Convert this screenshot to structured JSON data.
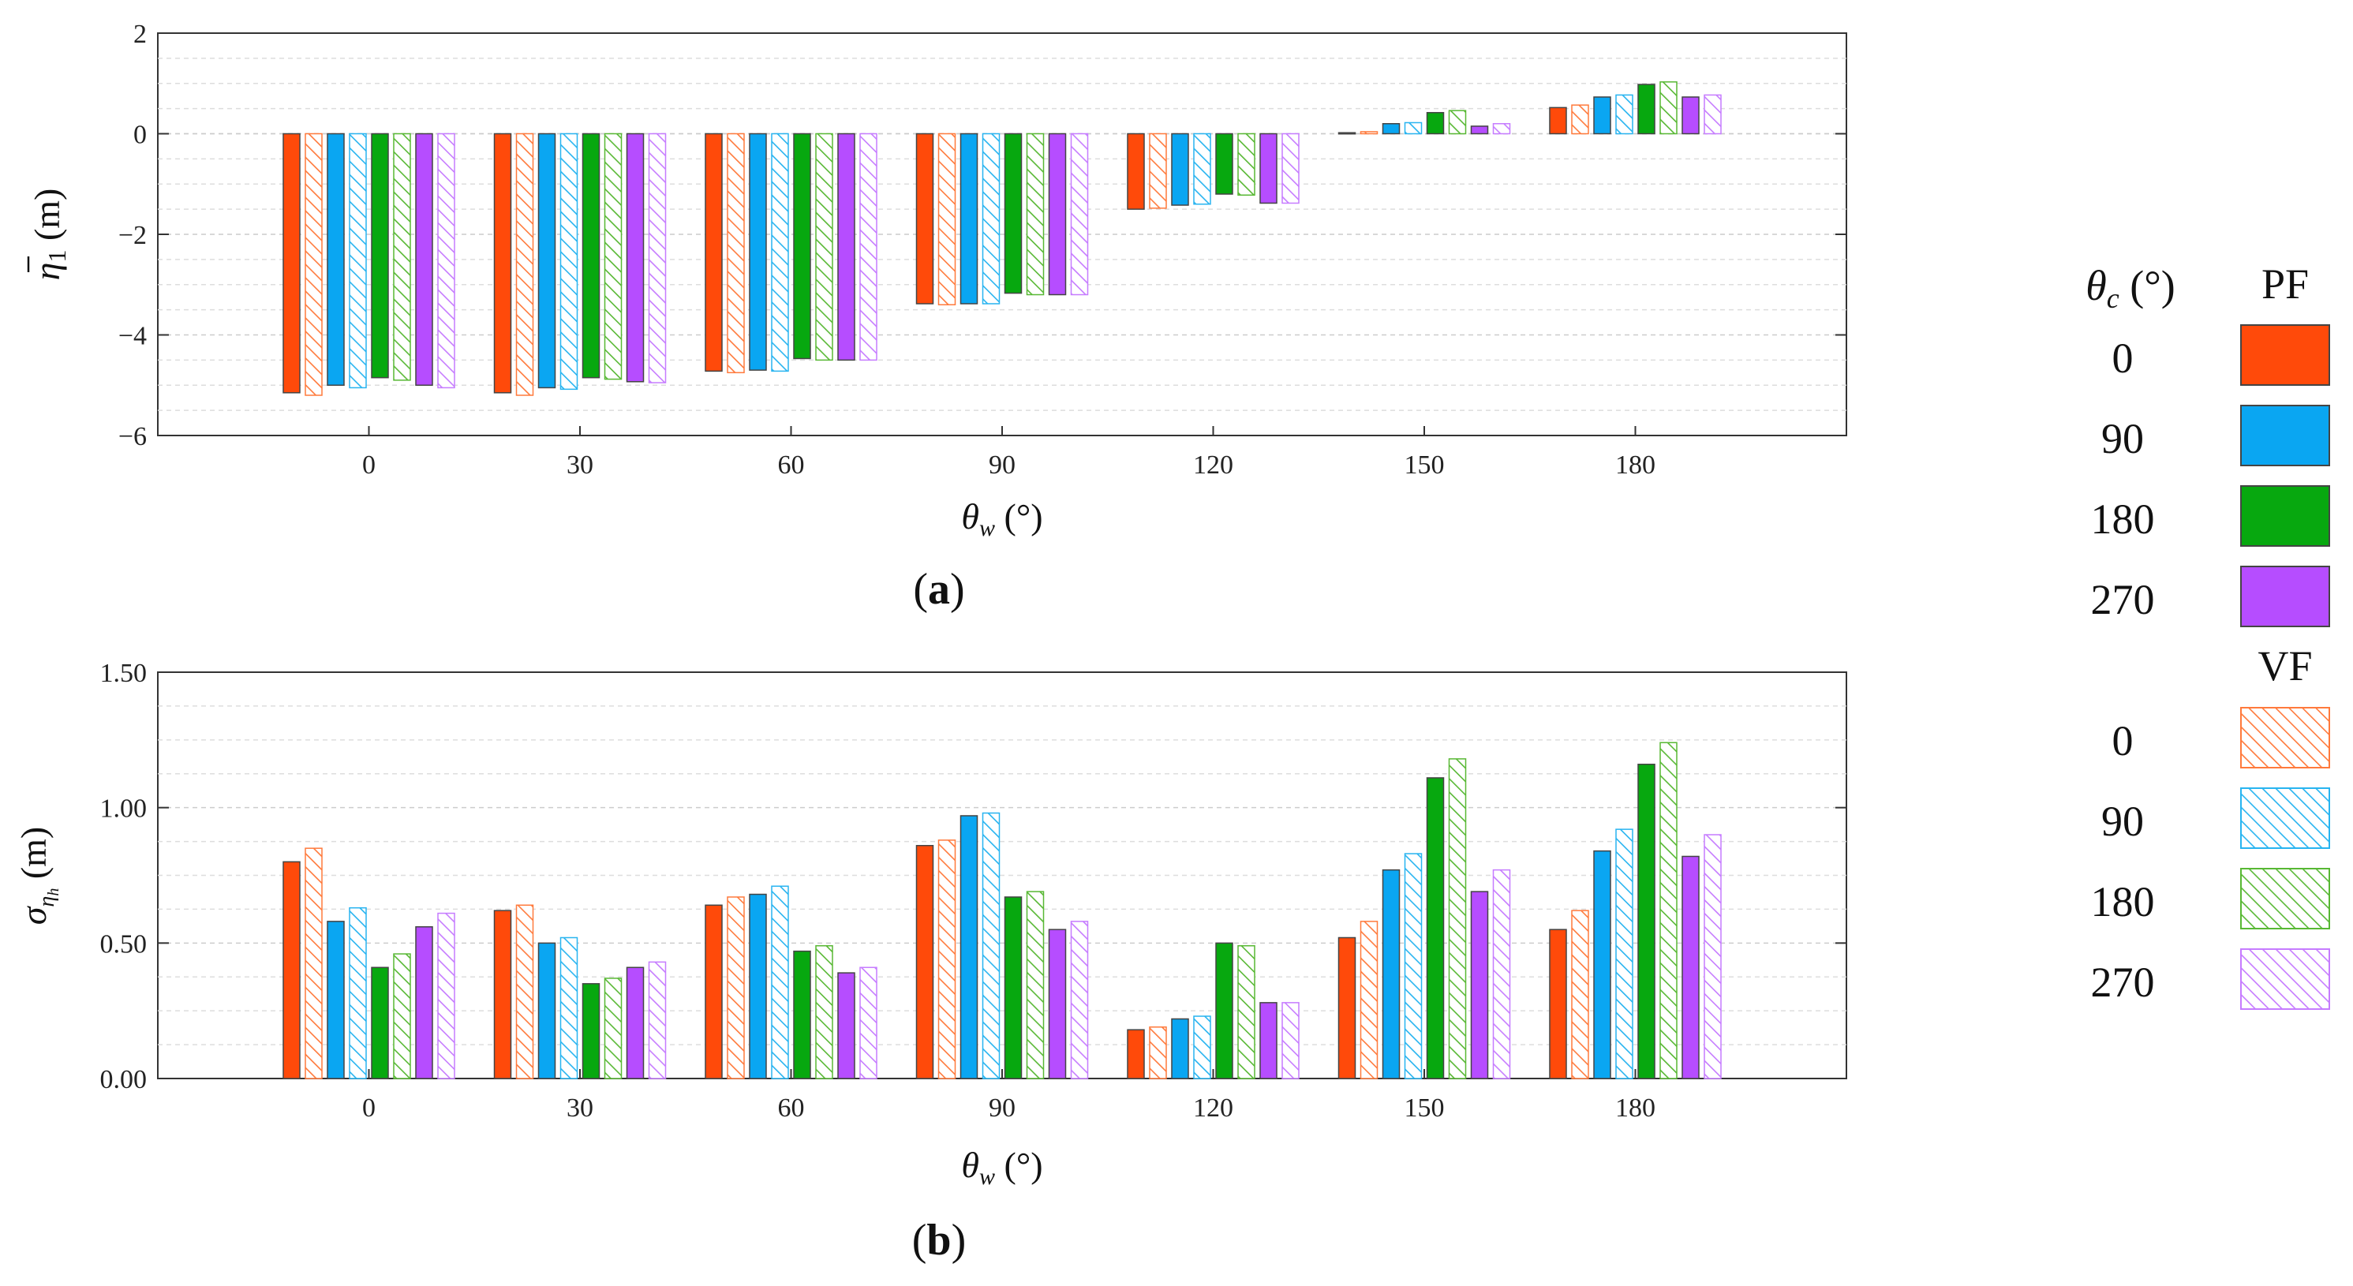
{
  "legend": {
    "header_symbol": "θ",
    "header_sub": "c",
    "header_unit": " (°)",
    "pf_label": "PF",
    "vf_label": "VF",
    "entries": [
      "0",
      "90",
      "180",
      "270"
    ]
  },
  "colors": {
    "angle_0": "#ff4a0a",
    "angle_90": "#0aa6f2",
    "angle_180": "#07a80f",
    "angle_270": "#b64dff",
    "vf_angle_0": "#ff7a3c",
    "vf_angle_90": "#28b4f0",
    "vf_angle_180": "#58b834",
    "vf_angle_270": "#c67cff"
  },
  "chart_data": [
    {
      "id": "a",
      "type": "bar",
      "panel_label": "a",
      "xlabel_symbol": "θ",
      "xlabel_sub": "w",
      "xlabel_unit": " (°)",
      "ylabel_symbol": "η",
      "ylabel_sub": "1",
      "ylabel_unit": " (m)",
      "ylabel_overbar": true,
      "categories": [
        "0",
        "30",
        "60",
        "90",
        "120",
        "150",
        "180"
      ],
      "ylim": [
        -6,
        2
      ],
      "yticks": [
        -6,
        -4,
        -2,
        0,
        2
      ],
      "ytick_labels": [
        "−6",
        "−4",
        "−2",
        "0",
        "2"
      ],
      "grid": true,
      "series": [
        {
          "name": "PF 0",
          "model": "PF",
          "angle": "0",
          "values": [
            -5.15,
            -5.15,
            -4.72,
            -3.38,
            -1.5,
            0.02,
            0.52
          ]
        },
        {
          "name": "VF 0",
          "model": "VF",
          "angle": "0",
          "values": [
            -5.2,
            -5.2,
            -4.75,
            -3.4,
            -1.48,
            0.04,
            0.57
          ]
        },
        {
          "name": "PF 90",
          "model": "PF",
          "angle": "90",
          "values": [
            -5.0,
            -5.05,
            -4.7,
            -3.38,
            -1.42,
            0.2,
            0.73
          ]
        },
        {
          "name": "VF 90",
          "model": "VF",
          "angle": "90",
          "values": [
            -5.05,
            -5.08,
            -4.72,
            -3.38,
            -1.4,
            0.22,
            0.77
          ]
        },
        {
          "name": "PF 180",
          "model": "PF",
          "angle": "180",
          "values": [
            -4.85,
            -4.85,
            -4.47,
            -3.17,
            -1.2,
            0.42,
            0.98
          ]
        },
        {
          "name": "VF 180",
          "model": "VF",
          "angle": "180",
          "values": [
            -4.9,
            -4.88,
            -4.5,
            -3.2,
            -1.22,
            0.46,
            1.03
          ]
        },
        {
          "name": "PF 270",
          "model": "PF",
          "angle": "270",
          "values": [
            -5.0,
            -4.93,
            -4.5,
            -3.2,
            -1.38,
            0.15,
            0.73
          ]
        },
        {
          "name": "VF 270",
          "model": "VF",
          "angle": "270",
          "values": [
            -5.05,
            -4.95,
            -4.5,
            -3.2,
            -1.38,
            0.2,
            0.77
          ]
        }
      ]
    },
    {
      "id": "b",
      "type": "bar",
      "panel_label": "b",
      "xlabel_symbol": "θ",
      "xlabel_sub": "w",
      "xlabel_unit": " (°)",
      "ylabel_symbol": "σ",
      "ylabel_sub": "η",
      "ylabel_subsub": "h",
      "ylabel_unit": " (m)",
      "categories": [
        "0",
        "30",
        "60",
        "90",
        "120",
        "150",
        "180"
      ],
      "ylim": [
        0,
        1.5
      ],
      "yticks": [
        0,
        0.5,
        1.0,
        1.5
      ],
      "ytick_labels": [
        "0.00",
        "0.50",
        "1.00",
        "1.50"
      ],
      "grid": true,
      "series": [
        {
          "name": "PF 0",
          "model": "PF",
          "angle": "0",
          "values": [
            0.8,
            0.62,
            0.64,
            0.86,
            0.18,
            0.52,
            0.55
          ]
        },
        {
          "name": "VF 0",
          "model": "VF",
          "angle": "0",
          "values": [
            0.85,
            0.64,
            0.67,
            0.88,
            0.19,
            0.58,
            0.62
          ]
        },
        {
          "name": "PF 90",
          "model": "PF",
          "angle": "90",
          "values": [
            0.58,
            0.5,
            0.68,
            0.97,
            0.22,
            0.77,
            0.84
          ]
        },
        {
          "name": "VF 90",
          "model": "VF",
          "angle": "90",
          "values": [
            0.63,
            0.52,
            0.71,
            0.98,
            0.23,
            0.83,
            0.92
          ]
        },
        {
          "name": "PF 180",
          "model": "PF",
          "angle": "180",
          "values": [
            0.41,
            0.35,
            0.47,
            0.67,
            0.5,
            1.11,
            1.16
          ]
        },
        {
          "name": "VF 180",
          "model": "VF",
          "angle": "180",
          "values": [
            0.46,
            0.37,
            0.49,
            0.69,
            0.49,
            1.18,
            1.24
          ]
        },
        {
          "name": "PF 270",
          "model": "PF",
          "angle": "270",
          "values": [
            0.56,
            0.41,
            0.39,
            0.55,
            0.28,
            0.69,
            0.82
          ]
        },
        {
          "name": "VF 270",
          "model": "VF",
          "angle": "270",
          "values": [
            0.61,
            0.43,
            0.41,
            0.58,
            0.28,
            0.77,
            0.9
          ]
        }
      ]
    }
  ]
}
